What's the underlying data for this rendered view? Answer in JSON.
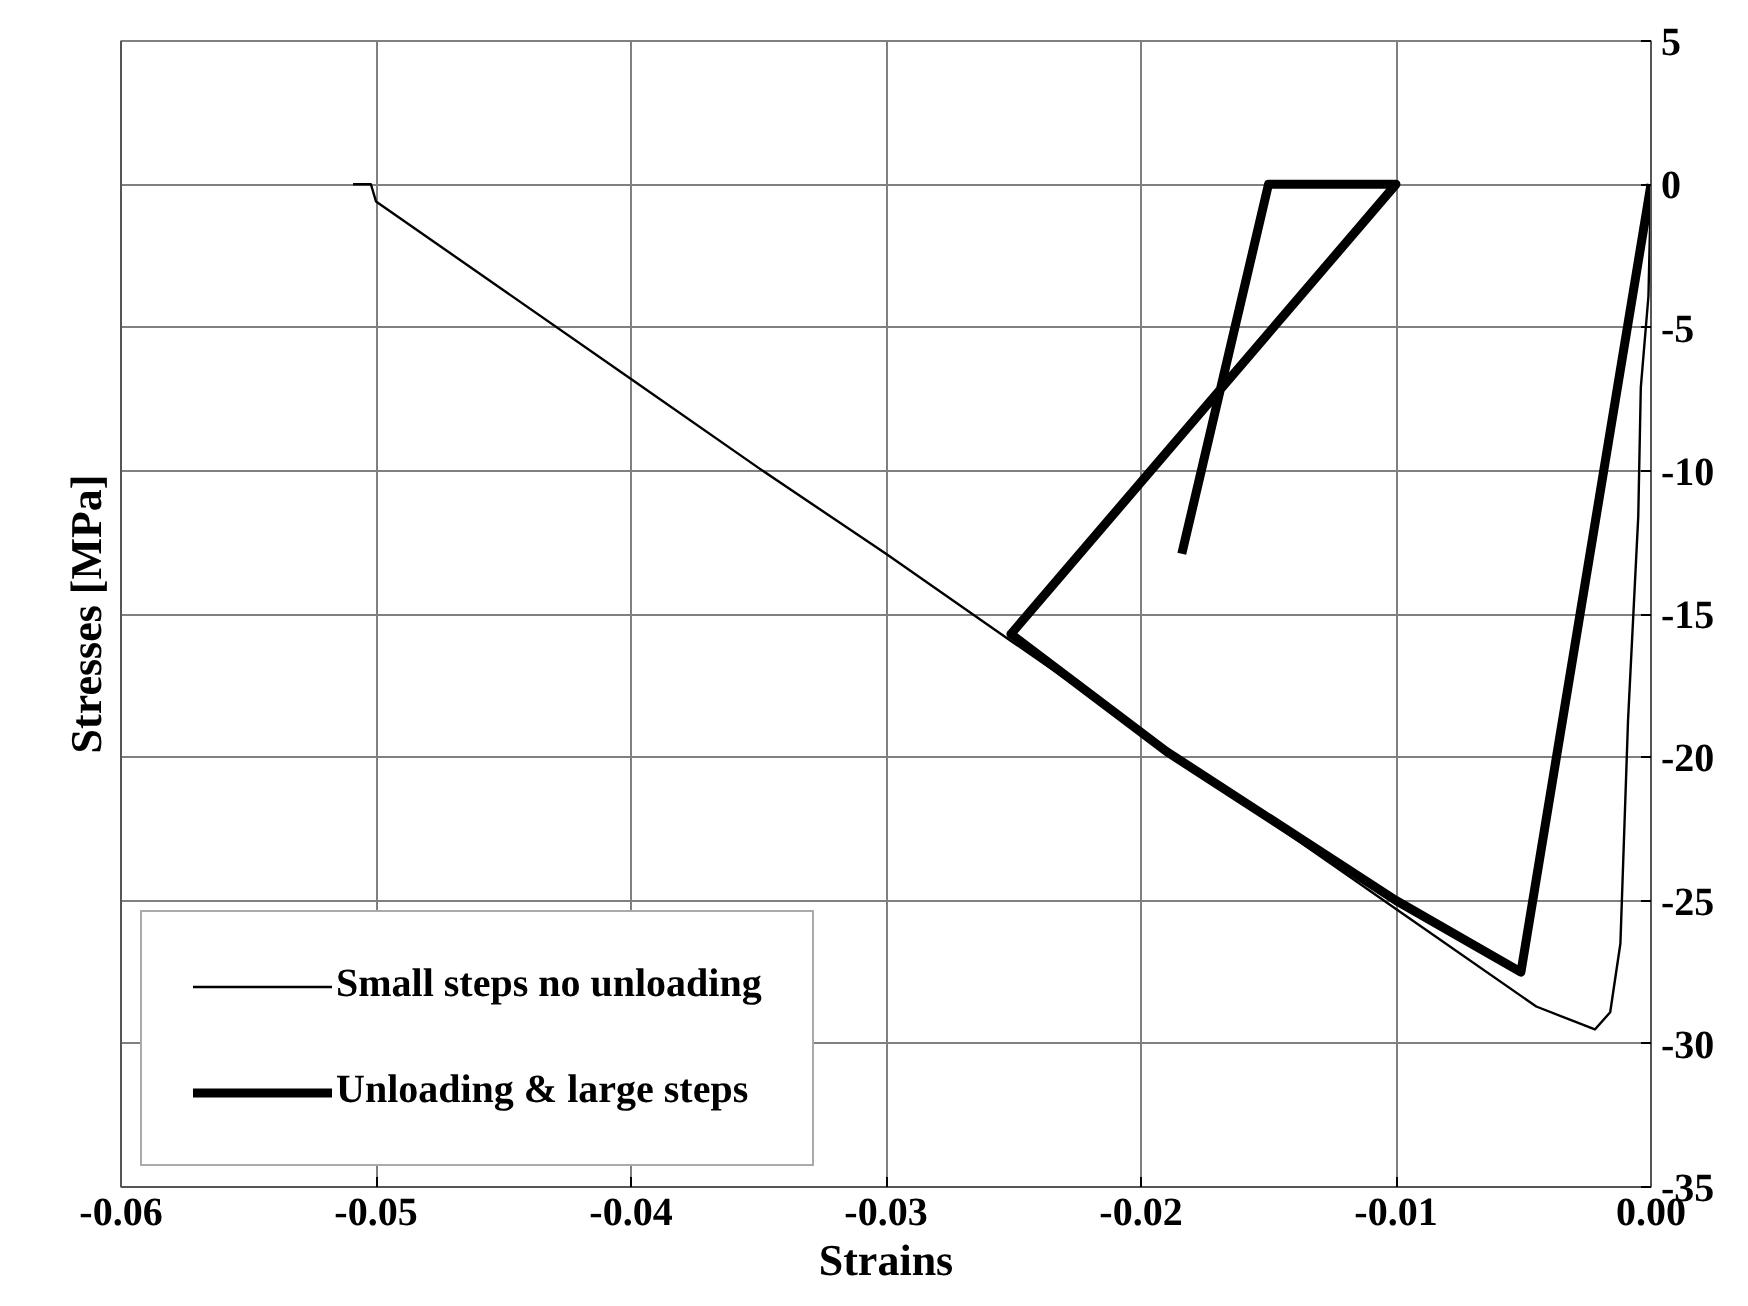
{
  "chart_data": {
    "type": "line",
    "xlabel": "Strains",
    "ylabel": "Stresses [MPa]",
    "xlim": [
      -0.06,
      0
    ],
    "ylim": [
      -35,
      5
    ],
    "xticks": [
      -0.06,
      -0.05,
      -0.04,
      -0.03,
      -0.02,
      -0.01,
      {
        "value": 0,
        "label": "0.00"
      }
    ],
    "yticks": [
      -35,
      -30,
      -25,
      -20,
      -15,
      -10,
      -5,
      0,
      5
    ],
    "grid": true,
    "legend": "bottom left",
    "line_style": "solid",
    "marker": "none",
    "series": [
      {
        "name": "Small steps no unloading",
        "color": "#000000",
        "x": [
          -0.0509,
          -0.0502,
          -0.05,
          -0.045,
          -0.04,
          -0.035,
          -0.03,
          -0.025,
          -0.019,
          -0.015,
          -0.01,
          -0.0045,
          -0.0022,
          -0.0016,
          -0.0012,
          -0.0009,
          -0.0005,
          -0.0004,
          -0.0001,
          0
        ],
        "values": [
          0,
          0,
          -0.6,
          -3.7,
          -6.8,
          -9.9,
          -12.9,
          -16.0,
          -19.7,
          -22.2,
          -25.3,
          -28.7,
          -29.5,
          -28.9,
          -26.5,
          -18.7,
          -11.6,
          -7.1,
          -3.9,
          0
        ]
      },
      {
        "name": "Unloading & large steps",
        "color": "#000000",
        "x": [
          0,
          -0.0051,
          -0.01,
          -0.019,
          -0.0251,
          -0.01,
          -0.015,
          -0.0184
        ],
        "values": [
          0,
          -27.5,
          -25,
          -19.8,
          -15.7,
          0,
          0,
          -12.9
        ]
      }
    ]
  }
}
